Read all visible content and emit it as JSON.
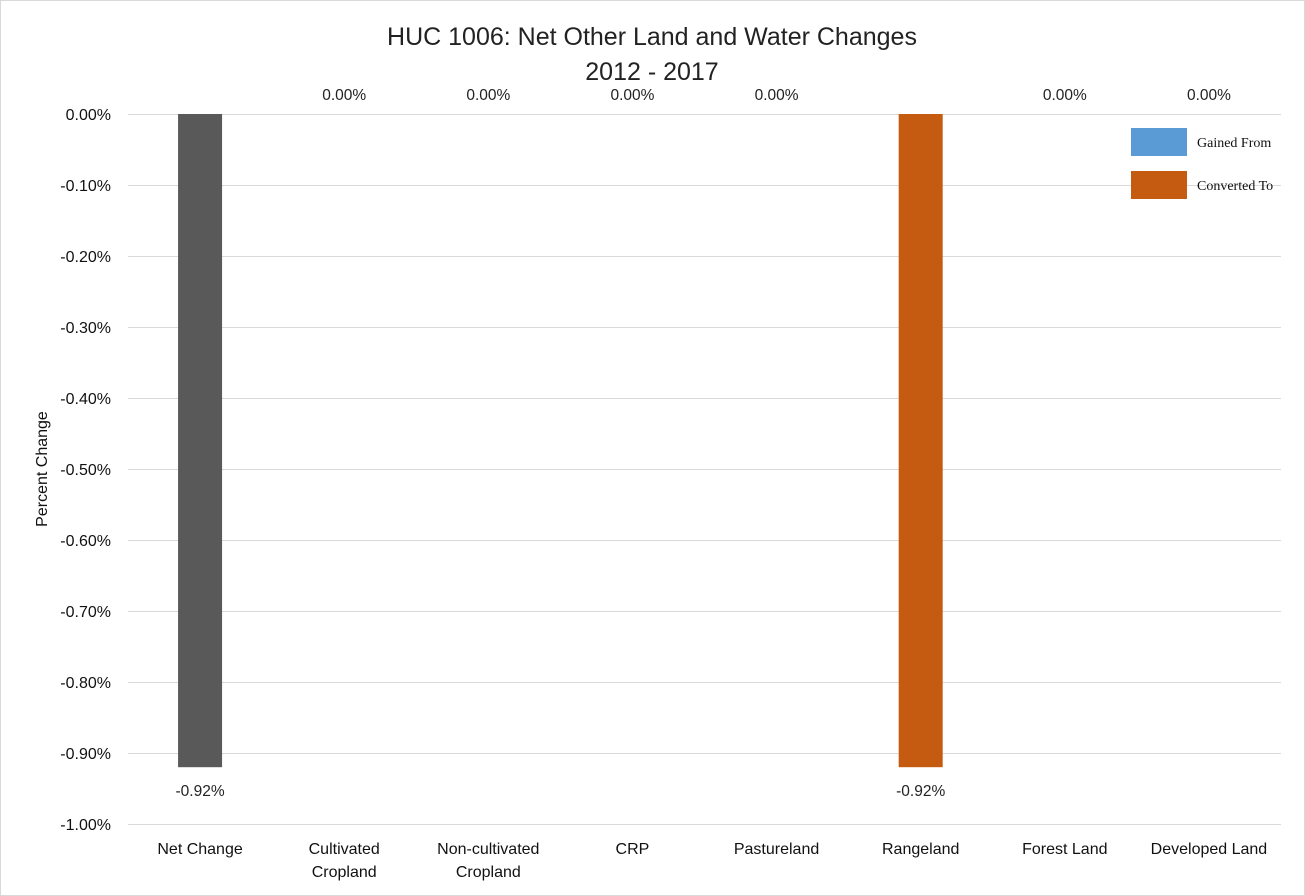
{
  "chart_data": {
    "type": "bar",
    "title": "HUC 1006: Net Other Land and Water Changes",
    "subtitle": "2012 - 2017",
    "xlabel": "",
    "ylabel": "Percent Change",
    "ylim": [
      -1.0,
      0.0
    ],
    "yticks": [
      0.0,
      -0.1,
      -0.2,
      -0.3,
      -0.4,
      -0.5,
      -0.6,
      -0.7,
      -0.8,
      -0.9,
      -1.0
    ],
    "ytick_labels": [
      "0.00%",
      "-0.10%",
      "-0.20%",
      "-0.30%",
      "-0.40%",
      "-0.50%",
      "-0.60%",
      "-0.70%",
      "-0.80%",
      "-0.90%",
      "-1.00%"
    ],
    "grid": true,
    "legend_position": "top-right",
    "categories": [
      [
        "Net Change"
      ],
      [
        "Cultivated",
        "Cropland"
      ],
      [
        "Non-cultivated",
        "Cropland"
      ],
      [
        "CRP"
      ],
      [
        "Pastureland"
      ],
      [
        "Rangeland"
      ],
      [
        "Forest Land"
      ],
      [
        "Developed Land"
      ]
    ],
    "values": [
      -0.92,
      0.0,
      0.0,
      0.0,
      0.0,
      -0.92,
      0.0,
      0.0
    ],
    "data_labels": [
      "-0.92%",
      "0.00%",
      "0.00%",
      "0.00%",
      "0.00%",
      "-0.92%",
      "0.00%",
      "0.00%"
    ],
    "bar_colors": [
      "#595959",
      "#c55a11",
      "#c55a11",
      "#c55a11",
      "#c55a11",
      "#c55a11",
      "#c55a11",
      "#c55a11"
    ],
    "legend": [
      {
        "label": "Gained From",
        "color": "#5b9bd5"
      },
      {
        "label": "Converted To",
        "color": "#c55a11"
      }
    ],
    "colors": {
      "net": "#595959",
      "gained": "#5b9bd5",
      "converted": "#c55a11",
      "grid": "#d9d9d9",
      "border": "#d9d9d9"
    }
  }
}
